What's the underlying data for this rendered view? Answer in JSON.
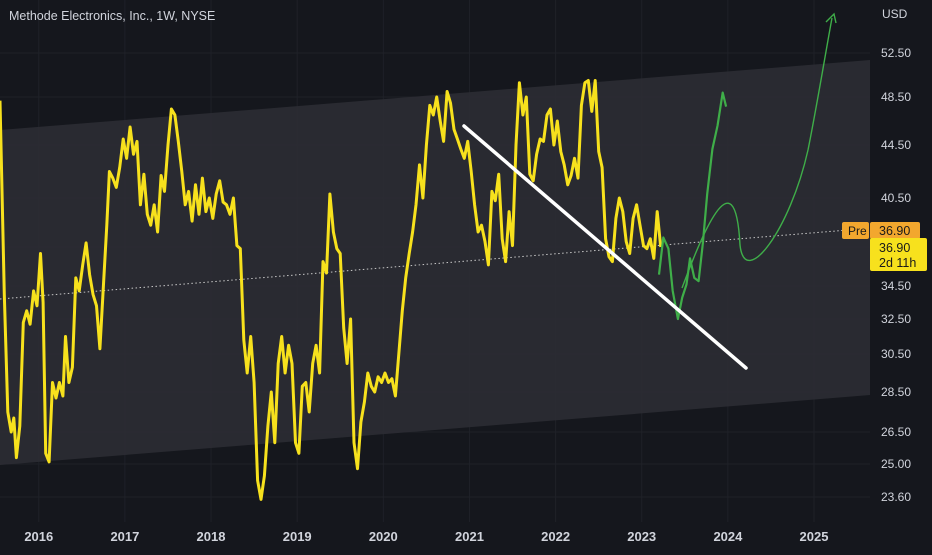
{
  "header": {
    "symbol_title": "Methode Electronics, Inc., 1W, NYSE",
    "currency": "USD"
  },
  "price_tags": {
    "pre_label": "Pre",
    "pre_price": "36.90",
    "last_price": "36.90",
    "countdown": "2d 11h"
  },
  "colors": {
    "background": "#15171d",
    "price_line": "#f7e11d",
    "projection": "#3fae49",
    "trendline": "#ffffff",
    "channel_fill": "#2b2d33",
    "pre_tag": "#f2a72e"
  },
  "chart_data": {
    "type": "line",
    "title": "Methode Electronics, Inc., 1W, NYSE",
    "ylabel": "USD",
    "y_ticks": [
      52.5,
      48.5,
      44.5,
      40.5,
      36.9,
      34.5,
      32.5,
      30.5,
      28.5,
      26.5,
      25.0,
      23.6
    ],
    "x_ticks": [
      "2016",
      "2017",
      "2018",
      "2019",
      "2020",
      "2021",
      "2022",
      "2023",
      "2024",
      "2025"
    ],
    "xlim": [
      2015.55,
      2025.65
    ],
    "ylim": [
      22.9,
      56.0
    ],
    "grid": true,
    "series": [
      {
        "kind": "price",
        "points": [
          [
            2015.55,
            48.2
          ],
          [
            2015.6,
            34.0
          ],
          [
            2015.64,
            27.5
          ],
          [
            2015.68,
            26.5
          ],
          [
            2015.71,
            27.2
          ],
          [
            2015.74,
            25.3
          ],
          [
            2015.78,
            26.8
          ],
          [
            2015.82,
            32.3
          ],
          [
            2015.86,
            33.0
          ],
          [
            2015.9,
            32.2
          ],
          [
            2015.94,
            34.2
          ],
          [
            2015.98,
            33.3
          ],
          [
            2016.02,
            36.5
          ],
          [
            2016.05,
            33.5
          ],
          [
            2016.08,
            25.5
          ],
          [
            2016.12,
            25.1
          ],
          [
            2016.16,
            29.0
          ],
          [
            2016.2,
            28.2
          ],
          [
            2016.24,
            29.0
          ],
          [
            2016.28,
            28.3
          ],
          [
            2016.31,
            31.5
          ],
          [
            2016.35,
            29.0
          ],
          [
            2016.39,
            29.8
          ],
          [
            2016.43,
            35.0
          ],
          [
            2016.47,
            34.2
          ],
          [
            2016.51,
            35.8
          ],
          [
            2016.55,
            37.2
          ],
          [
            2016.59,
            35.2
          ],
          [
            2016.63,
            34.0
          ],
          [
            2016.67,
            33.3
          ],
          [
            2016.71,
            30.8
          ],
          [
            2016.75,
            34.5
          ],
          [
            2016.79,
            38.5
          ],
          [
            2016.82,
            42.5
          ],
          [
            2016.86,
            42.0
          ],
          [
            2016.9,
            41.3
          ],
          [
            2016.94,
            42.8
          ],
          [
            2016.98,
            45.0
          ],
          [
            2017.02,
            43.5
          ],
          [
            2017.06,
            46.0
          ],
          [
            2017.1,
            43.8
          ],
          [
            2017.14,
            44.8
          ],
          [
            2017.18,
            40.0
          ],
          [
            2017.22,
            42.3
          ],
          [
            2017.26,
            39.3
          ],
          [
            2017.3,
            38.5
          ],
          [
            2017.34,
            40.0
          ],
          [
            2017.38,
            38.0
          ],
          [
            2017.42,
            42.2
          ],
          [
            2017.46,
            41.0
          ],
          [
            2017.5,
            44.5
          ],
          [
            2017.54,
            47.5
          ],
          [
            2017.58,
            47.0
          ],
          [
            2017.62,
            44.8
          ],
          [
            2017.66,
            42.5
          ],
          [
            2017.7,
            40.0
          ],
          [
            2017.74,
            41.0
          ],
          [
            2017.78,
            38.8
          ],
          [
            2017.82,
            41.5
          ],
          [
            2017.86,
            39.3
          ],
          [
            2017.9,
            42.0
          ],
          [
            2017.94,
            39.5
          ],
          [
            2017.98,
            40.5
          ],
          [
            2018.02,
            39.0
          ],
          [
            2018.06,
            40.8
          ],
          [
            2018.1,
            41.8
          ],
          [
            2018.14,
            40.2
          ],
          [
            2018.18,
            40.0
          ],
          [
            2018.22,
            39.3
          ],
          [
            2018.26,
            40.5
          ],
          [
            2018.3,
            37.0
          ],
          [
            2018.34,
            36.8
          ],
          [
            2018.38,
            31.3
          ],
          [
            2018.42,
            29.5
          ],
          [
            2018.46,
            31.5
          ],
          [
            2018.5,
            29.0
          ],
          [
            2018.54,
            24.3
          ],
          [
            2018.58,
            23.5
          ],
          [
            2018.62,
            24.5
          ],
          [
            2018.66,
            26.8
          ],
          [
            2018.7,
            28.5
          ],
          [
            2018.74,
            26.0
          ],
          [
            2018.78,
            30.0
          ],
          [
            2018.82,
            31.5
          ],
          [
            2018.86,
            29.5
          ],
          [
            2018.9,
            31.0
          ],
          [
            2018.94,
            30.0
          ],
          [
            2018.98,
            26.0
          ],
          [
            2019.02,
            25.5
          ],
          [
            2019.06,
            28.8
          ],
          [
            2019.1,
            29.0
          ],
          [
            2019.14,
            27.5
          ],
          [
            2019.18,
            30.0
          ],
          [
            2019.22,
            31.0
          ],
          [
            2019.26,
            29.5
          ],
          [
            2019.3,
            36.0
          ],
          [
            2019.34,
            35.3
          ],
          [
            2019.38,
            40.8
          ],
          [
            2019.42,
            38.0
          ],
          [
            2019.46,
            36.8
          ],
          [
            2019.5,
            36.5
          ],
          [
            2019.54,
            32.0
          ],
          [
            2019.58,
            30.0
          ],
          [
            2019.62,
            32.5
          ],
          [
            2019.66,
            26.0
          ],
          [
            2019.7,
            24.8
          ],
          [
            2019.74,
            27.0
          ],
          [
            2019.78,
            28.0
          ],
          [
            2019.82,
            29.5
          ],
          [
            2019.86,
            28.8
          ],
          [
            2019.9,
            28.5
          ],
          [
            2019.94,
            29.3
          ],
          [
            2019.98,
            29.0
          ],
          [
            2020.02,
            29.5
          ],
          [
            2020.06,
            29.0
          ],
          [
            2020.1,
            29.2
          ],
          [
            2020.14,
            28.3
          ],
          [
            2020.18,
            30.5
          ],
          [
            2020.22,
            33.0
          ],
          [
            2020.26,
            35.0
          ],
          [
            2020.3,
            36.5
          ],
          [
            2020.34,
            38.0
          ],
          [
            2020.38,
            40.0
          ],
          [
            2020.42,
            43.0
          ],
          [
            2020.46,
            40.5
          ],
          [
            2020.5,
            44.5
          ],
          [
            2020.54,
            47.8
          ],
          [
            2020.58,
            47.0
          ],
          [
            2020.62,
            48.5
          ],
          [
            2020.66,
            46.5
          ],
          [
            2020.7,
            44.8
          ],
          [
            2020.74,
            49.0
          ],
          [
            2020.78,
            48.0
          ],
          [
            2020.82,
            45.8
          ],
          [
            2020.86,
            45.0
          ],
          [
            2020.9,
            44.2
          ],
          [
            2020.94,
            43.5
          ],
          [
            2020.98,
            44.8
          ],
          [
            2021.02,
            42.5
          ],
          [
            2021.06,
            40.0
          ],
          [
            2021.1,
            38.0
          ],
          [
            2021.14,
            38.5
          ],
          [
            2021.18,
            37.3
          ],
          [
            2021.22,
            35.8
          ],
          [
            2021.26,
            41.0
          ],
          [
            2021.3,
            40.3
          ],
          [
            2021.34,
            42.3
          ],
          [
            2021.38,
            37.5
          ],
          [
            2021.42,
            36.0
          ],
          [
            2021.46,
            39.5
          ],
          [
            2021.5,
            37.0
          ],
          [
            2021.54,
            44.5
          ],
          [
            2021.58,
            49.8
          ],
          [
            2021.62,
            47.0
          ],
          [
            2021.66,
            48.5
          ],
          [
            2021.7,
            42.3
          ],
          [
            2021.74,
            41.8
          ],
          [
            2021.78,
            43.8
          ],
          [
            2021.82,
            45.0
          ],
          [
            2021.86,
            44.8
          ],
          [
            2021.9,
            47.0
          ],
          [
            2021.94,
            47.5
          ],
          [
            2021.98,
            44.5
          ],
          [
            2022.02,
            46.5
          ],
          [
            2022.06,
            44.0
          ],
          [
            2022.1,
            43.0
          ],
          [
            2022.14,
            41.5
          ],
          [
            2022.18,
            42.2
          ],
          [
            2022.22,
            43.5
          ],
          [
            2022.26,
            42.0
          ],
          [
            2022.3,
            47.8
          ],
          [
            2022.34,
            49.8
          ],
          [
            2022.38,
            50.0
          ],
          [
            2022.42,
            47.3
          ],
          [
            2022.46,
            50.0
          ],
          [
            2022.5,
            44.0
          ],
          [
            2022.54,
            42.8
          ],
          [
            2022.58,
            37.5
          ],
          [
            2022.62,
            36.3
          ],
          [
            2022.66,
            36.0
          ],
          [
            2022.7,
            39.0
          ],
          [
            2022.74,
            40.5
          ],
          [
            2022.78,
            39.5
          ],
          [
            2022.82,
            37.3
          ],
          [
            2022.86,
            36.5
          ],
          [
            2022.9,
            39.0
          ],
          [
            2022.94,
            40.0
          ],
          [
            2022.98,
            38.5
          ],
          [
            2023.02,
            37.0
          ],
          [
            2023.06,
            36.8
          ],
          [
            2023.1,
            37.5
          ],
          [
            2023.14,
            36.2
          ],
          [
            2023.18,
            39.5
          ],
          [
            2023.22,
            36.9
          ]
        ]
      },
      {
        "kind": "projection",
        "points": [
          [
            2023.2,
            35.2
          ],
          [
            2023.25,
            37.6
          ],
          [
            2023.31,
            36.8
          ],
          [
            2023.36,
            34.2
          ],
          [
            2023.42,
            32.5
          ],
          [
            2023.47,
            33.8
          ],
          [
            2023.52,
            34.6
          ],
          [
            2023.56,
            36.2
          ],
          [
            2023.61,
            35.0
          ],
          [
            2023.66,
            34.8
          ],
          [
            2023.71,
            37.2
          ],
          [
            2023.76,
            40.8
          ],
          [
            2023.82,
            44.2
          ],
          [
            2023.88,
            46.1
          ],
          [
            2023.94,
            48.9
          ],
          [
            2023.98,
            47.7
          ]
        ]
      }
    ]
  }
}
